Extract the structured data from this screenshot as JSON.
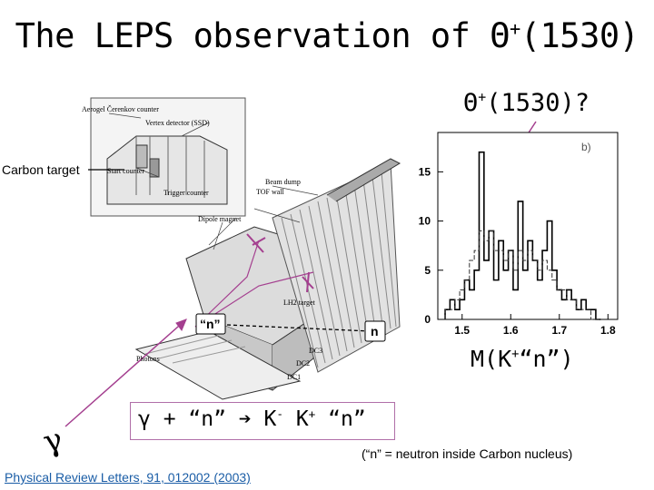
{
  "title": {
    "prefix": "The LEPS observation of ",
    "theta": "Θ",
    "sup": "+",
    "suffix": "(1530)"
  },
  "question": {
    "theta": "Θ",
    "sup": "+",
    "suffix": "(1530)?"
  },
  "carbon_target": "Carbon target",
  "detector": {
    "labels": [
      "Aerogel Čerenkov counter",
      "Vertex detector (SSD)",
      "Start counter",
      "Trigger counter",
      "Beam dump",
      "TOF wall",
      "Dipole magnet",
      "Photons",
      "DC1",
      "DC2",
      "DC3",
      "LH2 target"
    ],
    "n_quoted": "“n”",
    "n": "n"
  },
  "histogram_panel": "b)",
  "mass_label": {
    "prefix": "M(K",
    "sup": "+",
    "suffix": "“n”)"
  },
  "gamma": "γ",
  "reaction": {
    "g": "γ + “n” ",
    "arrow": "➔",
    "k1": " K",
    "s1": "-",
    "k2": " K",
    "s2": "+",
    "n": " “n”"
  },
  "note": "(“n” = neutron inside Carbon nucleus)",
  "reference": "Physical Review Letters, 91, 012002 (2003)",
  "colors": {
    "arrow": "#a43f8f",
    "link": "#1a5da6",
    "box_border": "#b06fa8"
  },
  "chart_data": {
    "type": "bar",
    "title": "b)",
    "x_ticks": [
      1.5,
      1.6,
      1.7,
      1.8
    ],
    "y_ticks": [
      0,
      5,
      10,
      15
    ],
    "xlim": [
      1.45,
      1.82
    ],
    "ylim": [
      0,
      19
    ],
    "series": [
      {
        "values": [
          [
            1.47,
            1
          ],
          [
            1.48,
            2
          ],
          [
            1.49,
            1
          ],
          [
            1.5,
            2
          ],
          [
            1.51,
            4
          ],
          [
            1.52,
            3
          ],
          [
            1.53,
            5
          ],
          [
            1.54,
            17
          ],
          [
            1.55,
            6
          ],
          [
            1.56,
            9
          ],
          [
            1.57,
            4
          ],
          [
            1.58,
            8
          ],
          [
            1.59,
            5
          ],
          [
            1.6,
            7
          ],
          [
            1.61,
            3
          ],
          [
            1.62,
            12
          ],
          [
            1.63,
            5
          ],
          [
            1.64,
            8
          ],
          [
            1.65,
            6
          ],
          [
            1.66,
            4
          ],
          [
            1.67,
            7
          ],
          [
            1.68,
            10
          ],
          [
            1.69,
            5
          ],
          [
            1.7,
            3
          ],
          [
            1.71,
            2
          ],
          [
            1.72,
            3
          ],
          [
            1.73,
            2
          ],
          [
            1.74,
            1
          ],
          [
            1.75,
            2
          ],
          [
            1.76,
            1
          ],
          [
            1.77,
            1
          ],
          [
            1.78,
            0
          ]
        ]
      },
      {
        "values": [
          [
            1.47,
            1
          ],
          [
            1.48,
            1
          ],
          [
            1.49,
            2
          ],
          [
            1.5,
            3
          ],
          [
            1.51,
            4
          ],
          [
            1.52,
            6
          ],
          [
            1.53,
            7
          ],
          [
            1.54,
            9
          ],
          [
            1.55,
            8
          ],
          [
            1.56,
            9
          ],
          [
            1.57,
            7
          ],
          [
            1.58,
            7
          ],
          [
            1.59,
            6
          ],
          [
            1.6,
            7
          ],
          [
            1.61,
            5
          ],
          [
            1.62,
            7
          ],
          [
            1.63,
            6
          ],
          [
            1.64,
            7
          ],
          [
            1.65,
            6
          ],
          [
            1.66,
            5
          ],
          [
            1.67,
            6
          ],
          [
            1.68,
            5
          ],
          [
            1.69,
            4
          ],
          [
            1.7,
            3
          ],
          [
            1.71,
            3
          ],
          [
            1.72,
            2
          ],
          [
            1.73,
            2
          ],
          [
            1.74,
            1
          ],
          [
            1.75,
            1
          ],
          [
            1.76,
            1
          ],
          [
            1.77,
            0
          ],
          [
            1.78,
            0
          ]
        ]
      }
    ]
  }
}
